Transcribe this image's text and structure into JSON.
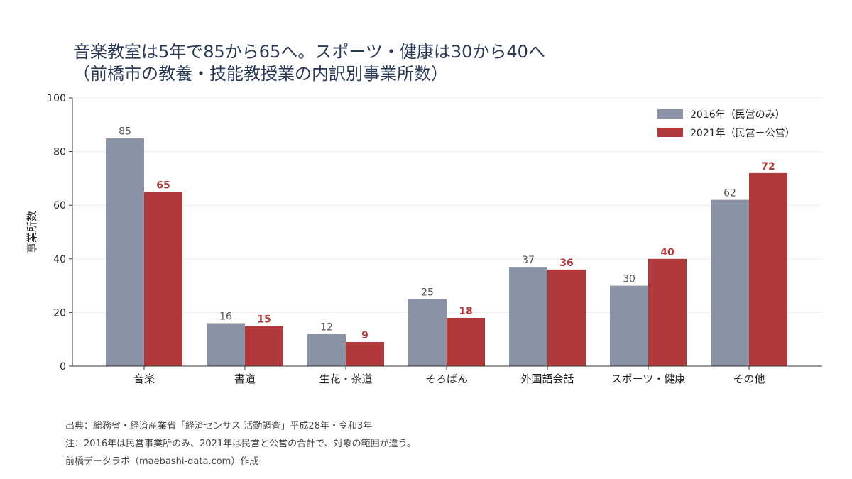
{
  "title_line1": "音楽教室は5年で85から65へ。スポーツ・健康は30から40へ",
  "title_line2": "（前橋市の教養・技能教授業の内訳別事業所数）",
  "colors": {
    "series_2016": "#8a93a6",
    "series_2021": "#b0393b",
    "title": "#2a3a55",
    "grid": "#eeeeee"
  },
  "chart_data": {
    "type": "bar",
    "categories": [
      "音楽",
      "書道",
      "生花・茶道",
      "そろばん",
      "外国語会話",
      "スポーツ・健康",
      "その他"
    ],
    "series": [
      {
        "name": "2016年（民営のみ）",
        "values": [
          85,
          16,
          12,
          25,
          37,
          30,
          62
        ]
      },
      {
        "name": "2021年（民営＋公営）",
        "values": [
          65,
          15,
          9,
          18,
          36,
          40,
          72
        ]
      }
    ],
    "ylabel": "事業所数",
    "xlabel": "",
    "ylim": [
      0,
      100
    ],
    "yticks": [
      0,
      20,
      40,
      60,
      80,
      100
    ],
    "grid": "horizontal",
    "legend": "top-right"
  },
  "notes": {
    "source": "出典：総務省・経済産業省「経済センサス-活動調査」平成28年・令和3年",
    "note": "注：2016年は民営事業所のみ、2021年は民営と公営の合計で、対象の範囲が違う。",
    "credit": "前橋データラボ（maebashi-data.com）作成"
  }
}
